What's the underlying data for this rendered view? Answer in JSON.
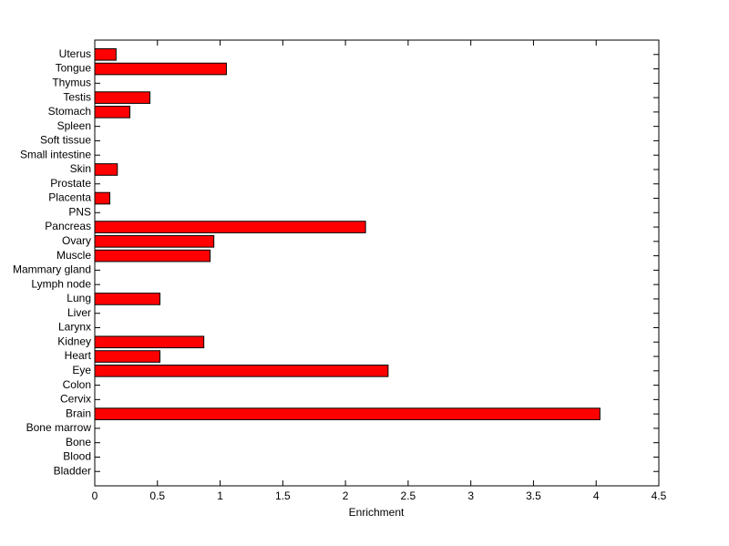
{
  "chart_data": {
    "type": "barh",
    "categories": [
      "Bladder",
      "Blood",
      "Bone",
      "Bone marrow",
      "Brain",
      "Cervix",
      "Colon",
      "Eye",
      "Heart",
      "Kidney",
      "Larynx",
      "Liver",
      "Lung",
      "Lymph node",
      "Mammary gland",
      "Muscle",
      "Ovary",
      "Pancreas",
      "PNS",
      "Placenta",
      "Prostate",
      "Skin",
      "Small intestine",
      "Soft tissue",
      "Spleen",
      "Stomach",
      "Testis",
      "Thymus",
      "Tongue",
      "Uterus"
    ],
    "values": [
      0,
      0,
      0,
      0,
      4.03,
      0,
      0,
      2.34,
      0.52,
      0.87,
      0,
      0,
      0.52,
      0,
      0,
      0.92,
      0.95,
      2.16,
      0,
      0.12,
      0,
      0.18,
      0,
      0,
      0,
      0.28,
      0.44,
      0,
      1.05,
      0.17
    ],
    "color": "#ff0000",
    "xlabel": "Enrichment",
    "xlim": [
      0,
      4.5
    ],
    "xticks": [
      0,
      0.5,
      1,
      1.5,
      2,
      2.5,
      3,
      3.5,
      4,
      4.5
    ]
  }
}
